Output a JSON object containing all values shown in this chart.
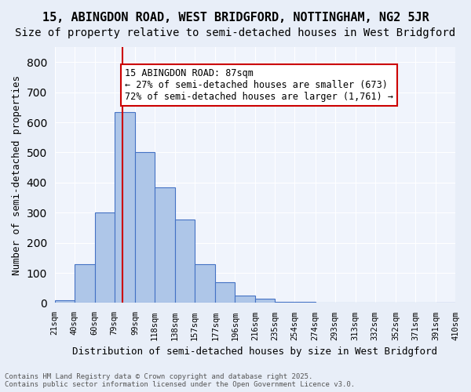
{
  "title": "15, ABINGDON ROAD, WEST BRIDGFORD, NOTTINGHAM, NG2 5JR",
  "subtitle": "Size of property relative to semi-detached houses in West Bridgford",
  "xlabel": "Distribution of semi-detached houses by size in West Bridgford",
  "ylabel": "Number of semi-detached properties",
  "bin_labels": [
    "21sqm",
    "40sqm",
    "60sqm",
    "79sqm",
    "99sqm",
    "118sqm",
    "138sqm",
    "157sqm",
    "177sqm",
    "196sqm",
    "216sqm",
    "235sqm",
    "254sqm",
    "274sqm",
    "293sqm",
    "313sqm",
    "332sqm",
    "352sqm",
    "371sqm",
    "391sqm",
    "410sqm"
  ],
  "bar_heights": [
    10,
    128,
    300,
    635,
    500,
    383,
    278,
    130,
    70,
    25,
    13,
    5,
    3,
    0,
    0,
    0,
    0,
    0,
    0,
    0,
    0
  ],
  "bar_color": "#aec6e8",
  "bar_edge_color": "#4472c4",
  "property_line_x": 87,
  "bin_edges": [
    21,
    40,
    60,
    79,
    99,
    118,
    138,
    157,
    177,
    196,
    216,
    235,
    254,
    274,
    293,
    313,
    332,
    352,
    371,
    391,
    410
  ],
  "ylim": [
    0,
    850
  ],
  "yticks": [
    0,
    100,
    200,
    300,
    400,
    500,
    600,
    700,
    800
  ],
  "annotation_text": "15 ABINGDON ROAD: 87sqm\n← 27% of semi-detached houses are smaller (673)\n72% of semi-detached houses are larger (1,761) →",
  "annotation_box_color": "#ffffff",
  "annotation_box_edge": "#cc0000",
  "vline_color": "#cc0000",
  "bg_color": "#e8eef8",
  "plot_bg_color": "#f0f4fc",
  "footer_text": "Contains HM Land Registry data © Crown copyright and database right 2025.\nContains public sector information licensed under the Open Government Licence v3.0.",
  "title_fontsize": 11,
  "subtitle_fontsize": 10,
  "annotation_fontsize": 8.5
}
